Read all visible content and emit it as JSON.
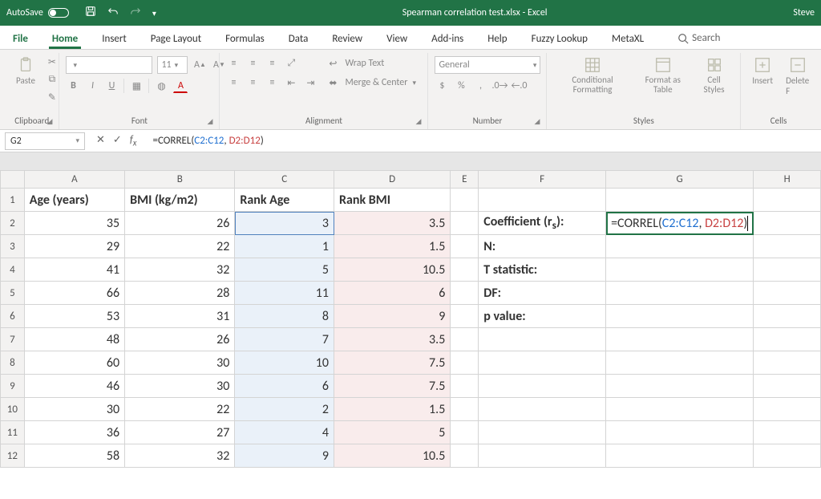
{
  "titlebar": {
    "autosave": "AutoSave",
    "doc": "Spearman correlation test.xlsx  -  Excel",
    "user": "Steve"
  },
  "tabs": {
    "items": [
      "File",
      "Home",
      "Insert",
      "Page Layout",
      "Formulas",
      "Data",
      "Review",
      "View",
      "Add-ins",
      "Help",
      "Fuzzy Lookup",
      "MetaXL"
    ],
    "active": "Home",
    "search": "Search"
  },
  "ribbon": {
    "clipboard": {
      "paste": "Paste",
      "label": "Clipboard"
    },
    "font": {
      "name": "",
      "size": "11",
      "label": "Font"
    },
    "alignment": {
      "wrap": "Wrap Text",
      "merge": "Merge & Center",
      "label": "Alignment"
    },
    "number": {
      "format": "General",
      "label": "Number"
    },
    "styles": {
      "cond": "Conditional Formatting",
      "fmt": "Format as Table",
      "cell": "Cell Styles",
      "label": "Styles"
    },
    "cells": {
      "insert": "Insert",
      "delete": "Delete F",
      "label": "Cells"
    }
  },
  "fx": {
    "cellref": "G2",
    "prefix": "=CORREL(",
    "arg1": "C2:C12",
    "sep": ", ",
    "arg2": "D2:D12",
    "suffix": ")"
  },
  "cols": {
    "widths": {
      "row": 30,
      "A": 128,
      "B": 140,
      "C": 127,
      "D": 150,
      "E": 36,
      "F": 162,
      "G": 163,
      "H": 88
    },
    "labels": [
      "A",
      "B",
      "C",
      "D",
      "E",
      "F",
      "G",
      "H"
    ]
  },
  "headers": {
    "A": "Age (years)",
    "B": "BMI (kg/m2)",
    "C": "Rank Age",
    "D": "Rank BMI"
  },
  "rows": [
    {
      "A": "35",
      "B": "26",
      "C": "3",
      "D": "3.5"
    },
    {
      "A": "29",
      "B": "22",
      "C": "1",
      "D": "1.5"
    },
    {
      "A": "41",
      "B": "32",
      "C": "5",
      "D": "10.5"
    },
    {
      "A": "66",
      "B": "28",
      "C": "11",
      "D": "6"
    },
    {
      "A": "53",
      "B": "31",
      "C": "8",
      "D": "9"
    },
    {
      "A": "48",
      "B": "26",
      "C": "7",
      "D": "3.5"
    },
    {
      "A": "60",
      "B": "30",
      "C": "10",
      "D": "7.5"
    },
    {
      "A": "46",
      "B": "30",
      "C": "6",
      "D": "7.5"
    },
    {
      "A": "30",
      "B": "22",
      "C": "2",
      "D": "1.5"
    },
    {
      "A": "36",
      "B": "27",
      "C": "4",
      "D": "5"
    },
    {
      "A": "58",
      "B": "32",
      "C": "9",
      "D": "10.5"
    }
  ],
  "labelsF": [
    "Coefficient (r",
    "N:",
    "T statistic:",
    "DF:",
    "p value:"
  ],
  "coef_sub": "s",
  "coef_suffix": "):",
  "colors": {
    "brand": "#217346",
    "hlC": "#eaf1f9",
    "hlD": "#f9ecec",
    "rangeC": "#4f81bd",
    "rangeD": "#c0504d",
    "fxBlue": "#1f6fd0",
    "fxRed": "#c84242"
  }
}
